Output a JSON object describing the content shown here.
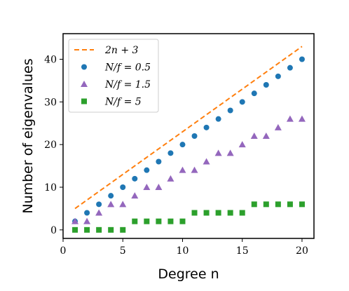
{
  "chart_data": {
    "type": "scatter",
    "xlabel": "Degree n",
    "ylabel": "Number of eigenvalues",
    "xlim": [
      0,
      21
    ],
    "ylim": [
      -2,
      46
    ],
    "xticks": [
      "0",
      "5",
      "10",
      "15",
      "20"
    ],
    "yticks": [
      "0",
      "10",
      "20",
      "30",
      "40"
    ],
    "grid": false,
    "legend_position": "top-left",
    "series": [
      {
        "name": "2n + 3",
        "kind": "line",
        "style": "dashed",
        "color": "#ff7f0e",
        "x": [
          1,
          20
        ],
        "y": [
          5,
          43
        ]
      },
      {
        "name": "N/f = 0.5",
        "kind": "scatter",
        "marker": "circle",
        "color": "#1f77b4",
        "x": [
          1,
          2,
          3,
          4,
          5,
          6,
          7,
          8,
          9,
          10,
          11,
          12,
          13,
          14,
          15,
          16,
          17,
          18,
          19,
          20
        ],
        "y": [
          2,
          4,
          6,
          8,
          10,
          12,
          14,
          16,
          18,
          20,
          22,
          24,
          26,
          28,
          30,
          32,
          34,
          36,
          38,
          40
        ]
      },
      {
        "name": "N/f = 1.5",
        "kind": "scatter",
        "marker": "triangle",
        "color": "#9467bd",
        "x": [
          1,
          2,
          3,
          4,
          5,
          6,
          7,
          8,
          9,
          10,
          11,
          12,
          13,
          14,
          15,
          16,
          17,
          18,
          19,
          20
        ],
        "y": [
          2,
          2,
          4,
          6,
          6,
          8,
          10,
          10,
          12,
          14,
          14,
          16,
          18,
          18,
          20,
          22,
          22,
          24,
          26,
          26
        ]
      },
      {
        "name": "N/f = 5",
        "kind": "scatter",
        "marker": "square",
        "color": "#2ca02c",
        "x": [
          1,
          2,
          3,
          4,
          5,
          6,
          7,
          8,
          9,
          10,
          11,
          12,
          13,
          14,
          15,
          16,
          17,
          18,
          19,
          20
        ],
        "y": [
          0,
          0,
          0,
          0,
          0,
          2,
          2,
          2,
          2,
          2,
          4,
          4,
          4,
          4,
          4,
          6,
          6,
          6,
          6,
          6
        ]
      }
    ]
  }
}
